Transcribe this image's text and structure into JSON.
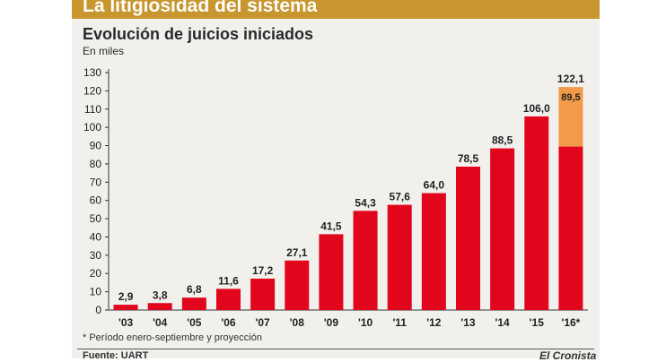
{
  "header": {
    "title": "La litigiosidad del sistema",
    "subtitle": "Evolución de juicios iniciados",
    "unit": "En miles"
  },
  "footer": {
    "footnote": "* Período enero-septiembre y proyección",
    "source": "Fuente: UART",
    "brand": "El Cronista"
  },
  "colors": {
    "bar": "#e2061c",
    "projection": "#f2994a",
    "title_bar": "#c8962e"
  },
  "chart_data": {
    "type": "bar",
    "title": "Evolución de juicios iniciados",
    "ylabel": "En miles",
    "ylim": [
      0,
      130
    ],
    "yticks": [
      0,
      10,
      20,
      30,
      40,
      50,
      60,
      70,
      80,
      90,
      100,
      110,
      120,
      130
    ],
    "grid": false,
    "categories": [
      "'03",
      "'04",
      "'05",
      "'06",
      "'07",
      "'08",
      "'09",
      "'10",
      "'11",
      "'12",
      "'13",
      "'14",
      "'15",
      "'16*"
    ],
    "values": [
      2.9,
      3.8,
      6.8,
      11.6,
      17.2,
      27.1,
      41.5,
      54.3,
      57.6,
      64.0,
      78.5,
      88.5,
      106.0,
      122.1
    ],
    "labels": [
      "2,9",
      "3,8",
      "6,8",
      "11,6",
      "17,2",
      "27,1",
      "41,5",
      "54,3",
      "57,6",
      "64,0",
      "78,5",
      "88,5",
      "106,0",
      "122,1"
    ],
    "stacked_last": {
      "base": 89.5,
      "total": 122.1,
      "base_label": "89,5"
    }
  }
}
